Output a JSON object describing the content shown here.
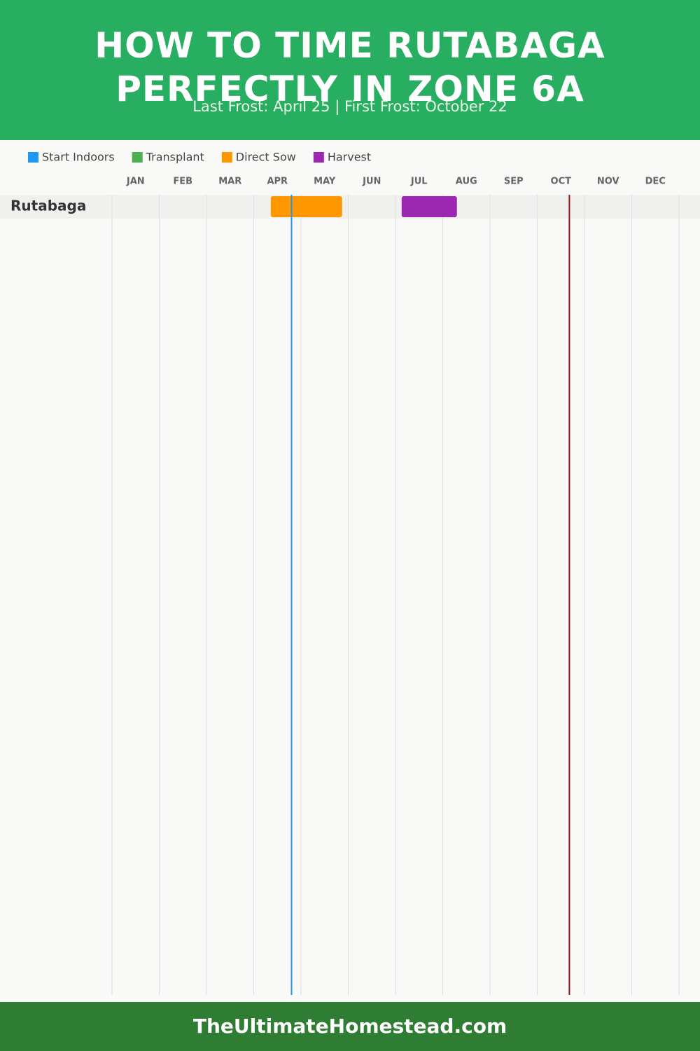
{
  "chart_data": {
    "type": "gantt",
    "title": "HOW TO TIME RUTABAGA PERFECTLY IN ZONE 6A",
    "subtitle": "Last Frost: April 25 | First Frost: October 22",
    "categories": [
      "JAN",
      "FEB",
      "MAR",
      "APR",
      "MAY",
      "JUN",
      "JUL",
      "AUG",
      "SEP",
      "OCT",
      "NOV",
      "DEC"
    ],
    "xlim": [
      0,
      12
    ],
    "rows": [
      "Rutabaga"
    ],
    "series": [
      {
        "name": "Start Indoors",
        "color": "#2196f3",
        "ranges": [
          null
        ]
      },
      {
        "name": "Transplant",
        "color": "#4caf50",
        "ranges": [
          null
        ]
      },
      {
        "name": "Direct Sow",
        "color": "#ff9800",
        "ranges": [
          [
            3.36,
            4.87
          ]
        ]
      },
      {
        "name": "Harvest",
        "color": "#9c27b0",
        "ranges": [
          [
            6.13,
            7.3
          ]
        ]
      }
    ],
    "markers": [
      {
        "x": 3.8,
        "color": "#2196f3"
      },
      {
        "x": 9.68,
        "color": "#8b1a1a"
      }
    ],
    "grid": true
  },
  "footer": "TheUltimateHomestead.com"
}
